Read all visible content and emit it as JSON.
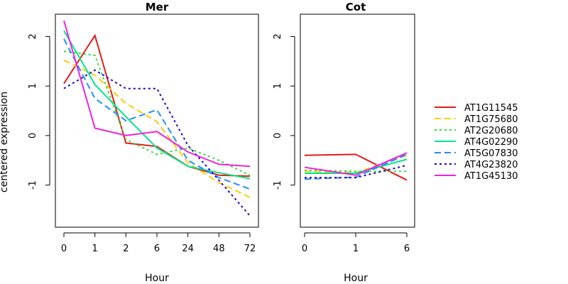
{
  "chart_data": [
    {
      "type": "line",
      "title": "Mer",
      "xlabel": "Hour",
      "ylabel": "centered expression",
      "categories": [
        "0",
        "1",
        "2",
        "6",
        "24",
        "48",
        "72"
      ],
      "ylim": [
        -1.85,
        2.45
      ],
      "yticks": [
        -1,
        0,
        1,
        2
      ],
      "series": [
        {
          "name": "AT1G11545",
          "color": "#e41a1c",
          "dash": "solid",
          "values": [
            1.05,
            2.02,
            -0.15,
            -0.22,
            -0.62,
            -0.8,
            -0.82
          ]
        },
        {
          "name": "AT1G75680",
          "color": "#ffcc00",
          "dash": "dashed",
          "values": [
            1.52,
            1.22,
            0.65,
            0.28,
            -0.55,
            -0.95,
            -1.25
          ]
        },
        {
          "name": "AT2G20680",
          "color": "#33dd33",
          "dash": "dotted",
          "values": [
            1.7,
            1.62,
            -0.08,
            -0.38,
            -0.25,
            -0.5,
            -0.8
          ]
        },
        {
          "name": "AT4G02290",
          "color": "#00e68a",
          "dash": "solid",
          "values": [
            2.12,
            1.03,
            0.38,
            -0.25,
            -0.62,
            -0.75,
            -0.87
          ]
        },
        {
          "name": "AT5G07830",
          "color": "#1e90ff",
          "dash": "dashed",
          "values": [
            1.95,
            0.75,
            0.3,
            0.52,
            -0.5,
            -0.85,
            -1.08
          ]
        },
        {
          "name": "AT4G23820",
          "color": "#2200cc",
          "dash": "dotted",
          "values": [
            0.95,
            1.32,
            0.95,
            0.95,
            -0.2,
            -0.9,
            -1.62
          ]
        },
        {
          "name": "AT1G45130",
          "color": "#ee22dd",
          "dash": "solid",
          "values": [
            2.32,
            0.15,
            0.0,
            0.08,
            -0.33,
            -0.58,
            -0.62
          ]
        }
      ]
    },
    {
      "type": "line",
      "title": "Cot",
      "xlabel": "Hour",
      "ylabel": "",
      "categories": [
        "0",
        "1",
        "6"
      ],
      "ylim": [
        -1.85,
        2.45
      ],
      "yticks": [
        -1,
        0,
        1,
        2
      ],
      "series": [
        {
          "name": "AT1G11545",
          "color": "#e41a1c",
          "dash": "solid",
          "values": [
            -0.4,
            -0.38,
            -0.9
          ]
        },
        {
          "name": "AT1G75680",
          "color": "#ffcc00",
          "dash": "dashed",
          "values": [
            -0.72,
            -0.75,
            -0.4
          ]
        },
        {
          "name": "AT2G20680",
          "color": "#33dd33",
          "dash": "dotted",
          "values": [
            -0.7,
            -0.72,
            -0.72
          ]
        },
        {
          "name": "AT4G02290",
          "color": "#00e68a",
          "dash": "solid",
          "values": [
            -0.76,
            -0.76,
            -0.48
          ]
        },
        {
          "name": "AT5G07830",
          "color": "#1e90ff",
          "dash": "dashed",
          "values": [
            -0.88,
            -0.84,
            -0.38
          ]
        },
        {
          "name": "AT4G23820",
          "color": "#2200cc",
          "dash": "dotted",
          "values": [
            -0.85,
            -0.85,
            -0.6
          ]
        },
        {
          "name": "AT1G45130",
          "color": "#ee22dd",
          "dash": "solid",
          "values": [
            -0.64,
            -0.8,
            -0.35
          ]
        }
      ]
    }
  ],
  "legend": {
    "position": "right",
    "entries": [
      {
        "name": "AT1G11545",
        "color": "#e41a1c",
        "dash": "solid"
      },
      {
        "name": "AT1G75680",
        "color": "#ffcc00",
        "dash": "dashed"
      },
      {
        "name": "AT2G20680",
        "color": "#33dd33",
        "dash": "dotted"
      },
      {
        "name": "AT4G02290",
        "color": "#00e68a",
        "dash": "solid"
      },
      {
        "name": "AT5G07830",
        "color": "#1e90ff",
        "dash": "dashed"
      },
      {
        "name": "AT4G23820",
        "color": "#2200cc",
        "dash": "dotted"
      },
      {
        "name": "AT1G45130",
        "color": "#ee22dd",
        "dash": "solid"
      }
    ]
  }
}
